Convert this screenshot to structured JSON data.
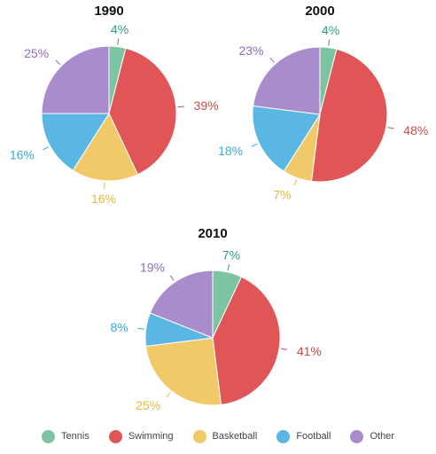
{
  "chart_data": [
    {
      "type": "pie",
      "title": "1990",
      "categories": [
        "Tennis",
        "Swimming",
        "Basketball",
        "Football",
        "Other"
      ],
      "values": [
        4,
        39,
        16,
        16,
        25
      ],
      "labels": [
        "4%",
        "39%",
        "16%",
        "16%",
        "25%"
      ]
    },
    {
      "type": "pie",
      "title": "2000",
      "categories": [
        "Tennis",
        "Swimming",
        "Basketball",
        "Football",
        "Other"
      ],
      "values": [
        4,
        48,
        7,
        18,
        23
      ],
      "labels": [
        "4%",
        "48%",
        "7%",
        "18%",
        "23%"
      ]
    },
    {
      "type": "pie",
      "title": "2010",
      "categories": [
        "Tennis",
        "Swimming",
        "Basketball",
        "Football",
        "Other"
      ],
      "values": [
        7,
        41,
        25,
        8,
        19
      ],
      "labels": [
        "7%",
        "41%",
        "25%",
        "8%",
        "19%"
      ]
    }
  ],
  "legend": {
    "placement": "bottom",
    "items": [
      {
        "label": "Tennis",
        "color": "#7cc4a2",
        "label_color": "#2e9e7a"
      },
      {
        "label": "Swimming",
        "color": "#e05555",
        "label_color": "#c0504d"
      },
      {
        "label": "Basketball",
        "color": "#f1c969",
        "label_color": "#e5b93c"
      },
      {
        "label": "Football",
        "color": "#5ab7e3",
        "label_color": "#3ba8d8"
      },
      {
        "label": "Other",
        "color": "#a98ccb",
        "label_color": "#8e6bbf"
      }
    ]
  }
}
